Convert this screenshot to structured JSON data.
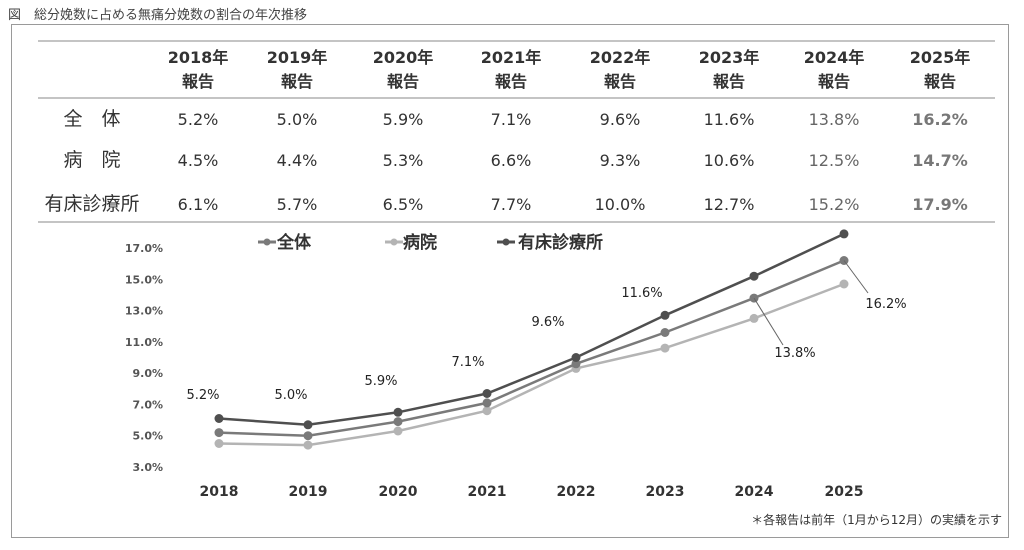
{
  "caption": "図　総分娩数に占める無痛分娩数の割合の年次推移",
  "footnote": "＊各報告は前年（1月から12月）の実績を示す",
  "table": {
    "headers": [
      [
        "2018年",
        "報告"
      ],
      [
        "2019年",
        "報告"
      ],
      [
        "2020年",
        "報告"
      ],
      [
        "2021年",
        "報告"
      ],
      [
        "2022年",
        "報告"
      ],
      [
        "2023年",
        "報告"
      ],
      [
        "2024年",
        "報告"
      ],
      [
        "2025年",
        "報告"
      ]
    ],
    "rows": [
      {
        "label": "全　体",
        "values": [
          "5.2%",
          "5.0%",
          "5.9%",
          "7.1%",
          "9.6%",
          "11.6%",
          "13.8%",
          "16.2%"
        ]
      },
      {
        "label": "病　院",
        "values": [
          "4.5%",
          "4.4%",
          "5.3%",
          "6.6%",
          "9.3%",
          "10.6%",
          "12.5%",
          "14.7%"
        ]
      },
      {
        "label": "有床診療所",
        "values": [
          "6.1%",
          "5.7%",
          "6.5%",
          "7.7%",
          "10.0%",
          "12.7%",
          "15.2%",
          "17.9%"
        ]
      }
    ]
  },
  "chart_data": {
    "type": "line",
    "x": [
      "2018",
      "2019",
      "2020",
      "2021",
      "2022",
      "2023",
      "2024",
      "2025"
    ],
    "yticks": [
      "3.0%",
      "5.0%",
      "7.0%",
      "9.0%",
      "11.0%",
      "13.0%",
      "15.0%",
      "17.0%"
    ],
    "ylim": [
      3.0,
      17.0
    ],
    "legend_position": "top",
    "series": [
      {
        "name": "全体",
        "color": "#7a7a7a",
        "values": [
          5.2,
          5.0,
          5.9,
          7.1,
          9.6,
          11.6,
          13.8,
          16.2
        ]
      },
      {
        "name": "病院",
        "color": "#b4b4b4",
        "values": [
          4.5,
          4.4,
          5.3,
          6.6,
          9.3,
          10.6,
          12.5,
          14.7
        ]
      },
      {
        "name": "有床診療所",
        "color": "#4f4f4f",
        "values": [
          6.1,
          5.7,
          6.5,
          7.7,
          10.0,
          12.7,
          15.2,
          17.9
        ]
      }
    ],
    "data_labels": [
      "5.2%",
      "5.0%",
      "5.9%",
      "7.1%",
      "9.6%",
      "11.6%",
      "13.8%",
      "16.2%"
    ]
  }
}
